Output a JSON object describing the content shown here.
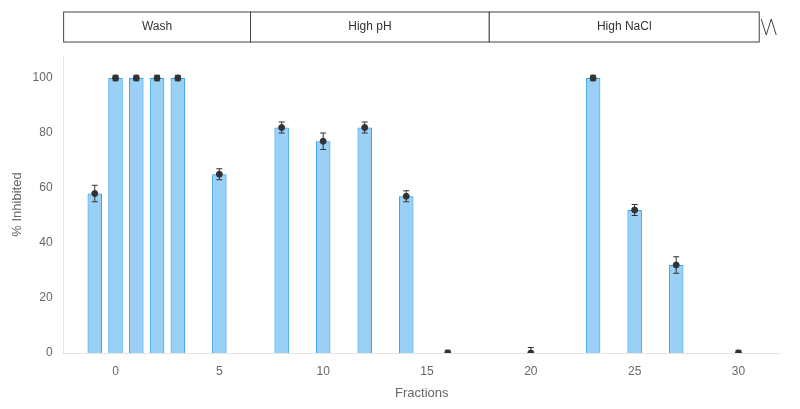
{
  "chart_data": {
    "type": "bar",
    "x": [
      -1,
      0,
      1,
      2,
      3,
      5,
      8,
      10,
      12,
      14,
      16,
      20,
      23,
      25,
      27,
      30
    ],
    "values": [
      58,
      100,
      100,
      100,
      100,
      65,
      82,
      77,
      82,
      57,
      0,
      0,
      100,
      52,
      32,
      0
    ],
    "errors": [
      3,
      1,
      1,
      1,
      1,
      2,
      2,
      3,
      2,
      2,
      1,
      2,
      1,
      2,
      3,
      1
    ],
    "x_label": "Fractions",
    "y_label": "% Inhibited",
    "xlim": [
      -2.5,
      32
    ],
    "ylim": [
      0,
      108
    ],
    "xticks": [
      0,
      5,
      10,
      15,
      20,
      25,
      30
    ],
    "yticks": [
      0,
      20,
      40,
      60,
      80,
      100
    ],
    "sections": [
      {
        "label": "Wash",
        "x_start": -2.5,
        "x_end": 6.5
      },
      {
        "label": "High pH",
        "x_start": 6.5,
        "x_end": 18.0
      },
      {
        "label": "High NaCl",
        "x_start": 18.0,
        "x_end": 31.0
      }
    ],
    "grid": false
  }
}
